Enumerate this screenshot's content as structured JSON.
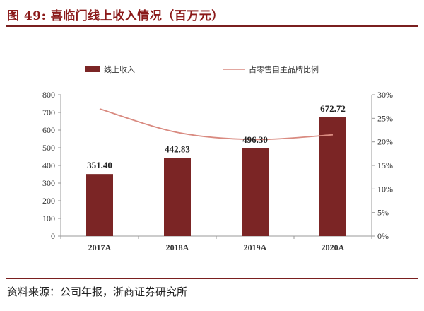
{
  "header": {
    "figure_title": "图 49: 喜临门线上收入情况（百万元）"
  },
  "footer": {
    "source": "资料来源：公司年报，浙商证券研究所"
  },
  "chart_data": {
    "type": "bar",
    "categories": [
      "2017A",
      "2018A",
      "2019A",
      "2020A"
    ],
    "series": [
      {
        "name": "线上收入",
        "type": "bar",
        "axis": "left",
        "values": [
          351.4,
          442.83,
          496.3,
          672.72
        ],
        "labels": [
          "351.40",
          "442.83",
          "496.30",
          "672.72"
        ],
        "color": "#7b2525"
      },
      {
        "name": "占零售自主品牌比例",
        "type": "line",
        "axis": "right",
        "values": [
          0.27,
          0.22,
          0.205,
          0.215
        ],
        "color": "#d98a80"
      }
    ],
    "y_left": {
      "ylim": [
        0,
        800
      ],
      "ticks": [
        "0",
        "100",
        "200",
        "300",
        "400",
        "500",
        "600",
        "700",
        "800"
      ]
    },
    "y_right": {
      "ylim": [
        0,
        0.3
      ],
      "ticks": [
        "0%",
        "5%",
        "10%",
        "15%",
        "20%",
        "25%",
        "30%"
      ]
    },
    "grid": false,
    "legend_position": "top"
  }
}
